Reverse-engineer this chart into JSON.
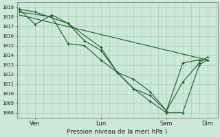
{
  "title": "Pression niveau de la mer( hPa )",
  "ylabel_vals": [
    1008,
    1009,
    1010,
    1011,
    1012,
    1013,
    1014,
    1015,
    1016,
    1017,
    1018,
    1019
  ],
  "ylim": [
    1007.5,
    1019.5
  ],
  "xlim": [
    -0.01,
    1.01
  ],
  "background_color": "#cce8d8",
  "grid_color": "#a8cbb8",
  "line_color": "#1a5c28",
  "x_tick_labels": [
    "Ven",
    "Lun",
    "Sam",
    "Dim"
  ],
  "x_tick_positions": [
    0.083,
    0.417,
    0.75,
    0.958
  ],
  "n_vertical_grid": 24,
  "line1_x": [
    0.0,
    0.083,
    0.25,
    0.417,
    0.5,
    0.583,
    0.667,
    0.75,
    0.833,
    0.917,
    0.958
  ],
  "line1_y": [
    1018.8,
    1018.5,
    1017.3,
    1014.8,
    1012.2,
    1010.5,
    1009.2,
    1008.0,
    1008.0,
    1013.0,
    1013.5
  ],
  "line2_x": [
    0.0,
    0.083,
    0.167,
    0.25,
    0.333,
    0.417,
    0.5,
    0.583,
    0.667,
    0.75,
    0.833,
    0.917,
    0.958
  ],
  "line2_y": [
    1018.8,
    1017.2,
    1018.2,
    1017.3,
    1015.5,
    1014.5,
    1012.2,
    1011.5,
    1010.2,
    1008.2,
    1013.2,
    1013.5,
    1013.5
  ],
  "line3_x": [
    0.0,
    0.167,
    0.25,
    0.333,
    0.417,
    0.5,
    0.583,
    0.667,
    0.75,
    0.833,
    0.917,
    0.958
  ],
  "line3_y": [
    1018.5,
    1018.0,
    1015.2,
    1015.0,
    1013.5,
    1012.2,
    1010.5,
    1009.8,
    1008.2,
    1011.2,
    1013.2,
    1013.8
  ],
  "line4_x": [
    0.0,
    0.958
  ],
  "line4_y": [
    1018.2,
    1013.5
  ]
}
